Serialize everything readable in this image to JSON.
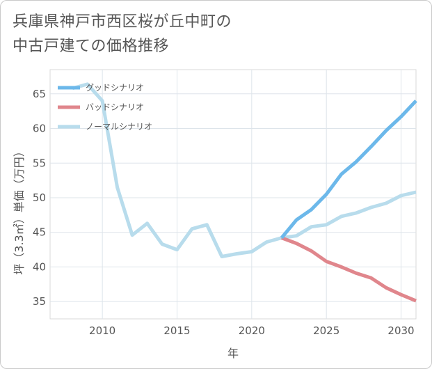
{
  "title": {
    "line1": "兵庫県神戸市西区桜が丘中町の",
    "line2": "中古戸建ての価格推移"
  },
  "chart_data": {
    "type": "line",
    "title": "兵庫県神戸市西区桜が丘中町の中古戸建ての価格推移",
    "xlabel": "年",
    "ylabel": "坪（3.3㎡）単価（万円）",
    "xlim": [
      2006.5,
      2031
    ],
    "ylim": [
      32.5,
      68.5
    ],
    "xticks": [
      2010,
      2015,
      2020,
      2025,
      2030
    ],
    "yticks": [
      35,
      40,
      45,
      50,
      55,
      60,
      65
    ],
    "grid": true,
    "legend_position": "top-left",
    "series": [
      {
        "name": "グッドシナリオ",
        "color": "#6cb8ea",
        "x": [
          2022,
          2023,
          2024,
          2025,
          2026,
          2027,
          2028,
          2029,
          2030,
          2031
        ],
        "values": [
          44.2,
          46.8,
          48.3,
          50.5,
          53.4,
          55.2,
          57.4,
          59.7,
          61.7,
          64.0
        ]
      },
      {
        "name": "バッドシナリオ",
        "color": "#e0868c",
        "x": [
          2022,
          2023,
          2024,
          2025,
          2026,
          2027,
          2028,
          2029,
          2030,
          2031
        ],
        "values": [
          44.2,
          43.4,
          42.3,
          40.8,
          40.0,
          39.1,
          38.4,
          37.0,
          36.0,
          35.1
        ]
      },
      {
        "name": "ノーマルシナリオ",
        "color": "#b8dcec",
        "x": [
          2008,
          2009,
          2010,
          2011,
          2012,
          2013,
          2014,
          2015,
          2016,
          2017,
          2018,
          2019,
          2020,
          2021,
          2022,
          2023,
          2024,
          2025,
          2026,
          2027,
          2028,
          2029,
          2030,
          2031
        ],
        "values": [
          65.8,
          66.4,
          64.0,
          51.5,
          44.6,
          46.3,
          43.3,
          42.5,
          45.5,
          46.1,
          41.5,
          41.9,
          42.2,
          43.6,
          44.2,
          44.5,
          45.8,
          46.1,
          47.3,
          47.8,
          48.6,
          49.2,
          50.3,
          50.8
        ]
      }
    ]
  }
}
